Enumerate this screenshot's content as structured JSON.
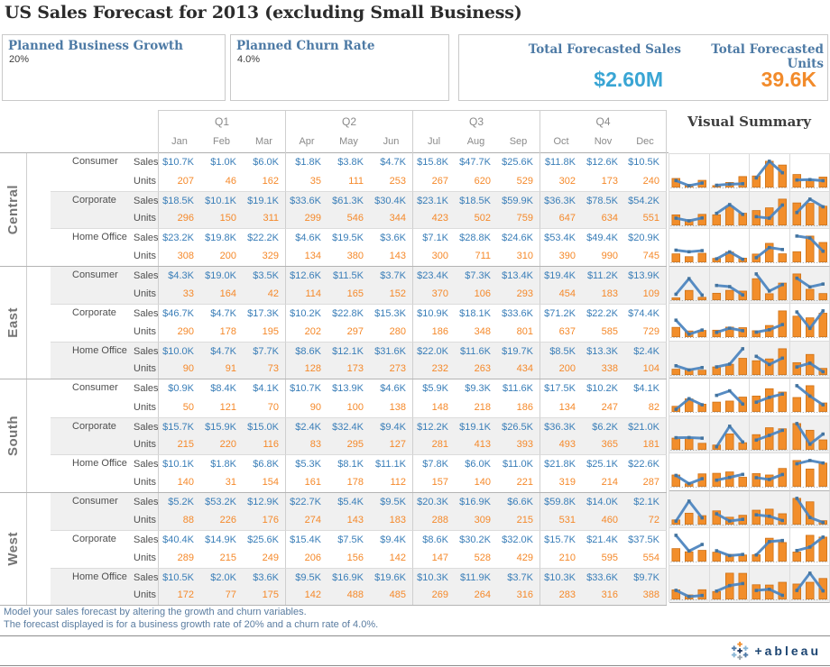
{
  "title": "US Sales Forecast for 2013 (excluding Small Business)",
  "parameters": {
    "growth": {
      "label": "Planned Business Growth",
      "value": "20%"
    },
    "churn": {
      "label": "Planned Churn Rate",
      "value": "4.0%"
    }
  },
  "totals": {
    "sales": {
      "label": "Total Forecasted Sales",
      "value": "$2.60M"
    },
    "units": {
      "label": "Total Forecasted Units",
      "value": "39.6K"
    }
  },
  "visual_summary": {
    "title": "Visual Summary"
  },
  "footer": {
    "line1": "Model your sales forecast by altering the growth and churn variables.",
    "line2": "The forecast displayed is for a business growth rate of 20% and a churn rate of 4.0%."
  },
  "logo": {
    "wordmark": "+ableau"
  },
  "colors": {
    "sales_text": "#3a7eb8",
    "units_text": "#f5892a",
    "bar_fill": "#f28e2b",
    "bar_stroke": "#cd7117",
    "line": "#4e86c0",
    "marker": "#44749f",
    "kpi_sales": "#39a5d4",
    "kpi_units": "#f28b2b",
    "accent_title": "#4d7aa5"
  },
  "table": {
    "quarters": [
      "Q1",
      "Q2",
      "Q3",
      "Q4"
    ],
    "months": [
      "Jan",
      "Feb",
      "Mar",
      "Apr",
      "May",
      "Jun",
      "Jul",
      "Aug",
      "Sep",
      "Oct",
      "Nov",
      "Dec"
    ],
    "measure_labels": [
      "Sales",
      "Units"
    ],
    "regions": [
      {
        "name": "Central",
        "segments": [
          {
            "name": "Consumer",
            "sales": [
              "$10.7K",
              "$1.0K",
              "$6.0K",
              "$1.8K",
              "$3.8K",
              "$4.7K",
              "$15.8K",
              "$47.7K",
              "$25.6K",
              "$11.8K",
              "$12.6K",
              "$10.5K"
            ],
            "units": [
              207,
              46,
              162,
              35,
              111,
              253,
              267,
              620,
              529,
              302,
              173,
              240
            ]
          },
          {
            "name": "Corporate",
            "sales": [
              "$18.5K",
              "$10.1K",
              "$19.1K",
              "$33.6K",
              "$61.3K",
              "$30.4K",
              "$23.1K",
              "$18.5K",
              "$59.9K",
              "$36.3K",
              "$78.5K",
              "$54.2K"
            ],
            "units": [
              296,
              150,
              311,
              299,
              546,
              344,
              423,
              502,
              759,
              647,
              634,
              551
            ]
          },
          {
            "name": "Home Office",
            "sales": [
              "$23.2K",
              "$19.8K",
              "$22.2K",
              "$4.6K",
              "$19.5K",
              "$3.6K",
              "$7.1K",
              "$28.8K",
              "$24.6K",
              "$53.4K",
              "$49.4K",
              "$20.9K"
            ],
            "units": [
              308,
              200,
              329,
              134,
              380,
              143,
              300,
              711,
              310,
              390,
              990,
              745
            ]
          }
        ]
      },
      {
        "name": "East",
        "segments": [
          {
            "name": "Consumer",
            "sales": [
              "$4.3K",
              "$19.0K",
              "$3.5K",
              "$12.6K",
              "$11.5K",
              "$3.7K",
              "$23.4K",
              "$7.3K",
              "$13.4K",
              "$19.4K",
              "$11.2K",
              "$13.9K"
            ],
            "units": [
              33,
              164,
              42,
              114,
              165,
              152,
              370,
              106,
              293,
              454,
              183,
              109
            ]
          },
          {
            "name": "Corporate",
            "sales": [
              "$46.7K",
              "$4.7K",
              "$17.3K",
              "$10.2K",
              "$22.8K",
              "$15.3K",
              "$10.9K",
              "$18.1K",
              "$33.6K",
              "$71.2K",
              "$22.2K",
              "$74.4K"
            ],
            "units": [
              290,
              178,
              195,
              202,
              297,
              280,
              186,
              348,
              801,
              637,
              585,
              729
            ]
          },
          {
            "name": "Home Office",
            "sales": [
              "$10.0K",
              "$4.7K",
              "$7.7K",
              "$8.6K",
              "$12.1K",
              "$31.6K",
              "$22.0K",
              "$11.6K",
              "$19.7K",
              "$8.5K",
              "$13.3K",
              "$2.4K"
            ],
            "units": [
              90,
              91,
              73,
              128,
              173,
              273,
              232,
              263,
              434,
              200,
              338,
              104
            ]
          }
        ]
      },
      {
        "name": "South",
        "segments": [
          {
            "name": "Consumer",
            "sales": [
              "$0.9K",
              "$8.4K",
              "$4.1K",
              "$10.7K",
              "$13.9K",
              "$4.6K",
              "$5.9K",
              "$9.3K",
              "$11.6K",
              "$17.5K",
              "$10.2K",
              "$4.1K"
            ],
            "units": [
              50,
              121,
              70,
              90,
              100,
              138,
              148,
              218,
              186,
              134,
              247,
              82
            ]
          },
          {
            "name": "Corporate",
            "sales": [
              "$15.7K",
              "$15.9K",
              "$15.0K",
              "$2.4K",
              "$32.4K",
              "$9.4K",
              "$12.2K",
              "$19.1K",
              "$26.5K",
              "$36.3K",
              "$6.2K",
              "$21.0K"
            ],
            "units": [
              215,
              220,
              116,
              83,
              295,
              127,
              281,
              413,
              393,
              493,
              365,
              181
            ]
          },
          {
            "name": "Home Office",
            "sales": [
              "$10.1K",
              "$1.8K",
              "$6.8K",
              "$5.3K",
              "$8.1K",
              "$11.1K",
              "$7.8K",
              "$6.0K",
              "$11.0K",
              "$21.8K",
              "$25.1K",
              "$22.6K"
            ],
            "units": [
              140,
              31,
              154,
              161,
              178,
              112,
              157,
              140,
              221,
              319,
              214,
              287
            ]
          }
        ]
      },
      {
        "name": "West",
        "segments": [
          {
            "name": "Consumer",
            "sales": [
              "$5.2K",
              "$53.2K",
              "$12.9K",
              "$22.7K",
              "$5.4K",
              "$9.5K",
              "$20.3K",
              "$16.9K",
              "$6.6K",
              "$59.8K",
              "$14.0K",
              "$2.1K"
            ],
            "units": [
              88,
              226,
              176,
              274,
              143,
              183,
              288,
              309,
              215,
              531,
              460,
              72
            ]
          },
          {
            "name": "Corporate",
            "sales": [
              "$40.4K",
              "$14.9K",
              "$25.6K",
              "$15.4K",
              "$7.5K",
              "$9.4K",
              "$8.6K",
              "$30.2K",
              "$32.0K",
              "$15.7K",
              "$21.4K",
              "$37.5K"
            ],
            "units": [
              289,
              215,
              249,
              206,
              156,
              142,
              147,
              528,
              429,
              210,
              595,
              554
            ]
          },
          {
            "name": "Home Office",
            "sales": [
              "$10.5K",
              "$2.0K",
              "$3.6K",
              "$9.5K",
              "$16.9K",
              "$19.6K",
              "$10.3K",
              "$11.9K",
              "$3.7K",
              "$10.3K",
              "$33.6K",
              "$9.7K"
            ],
            "units": [
              172,
              77,
              175,
              142,
              488,
              485,
              269,
              264,
              316,
              283,
              316,
              388
            ]
          }
        ]
      }
    ]
  }
}
